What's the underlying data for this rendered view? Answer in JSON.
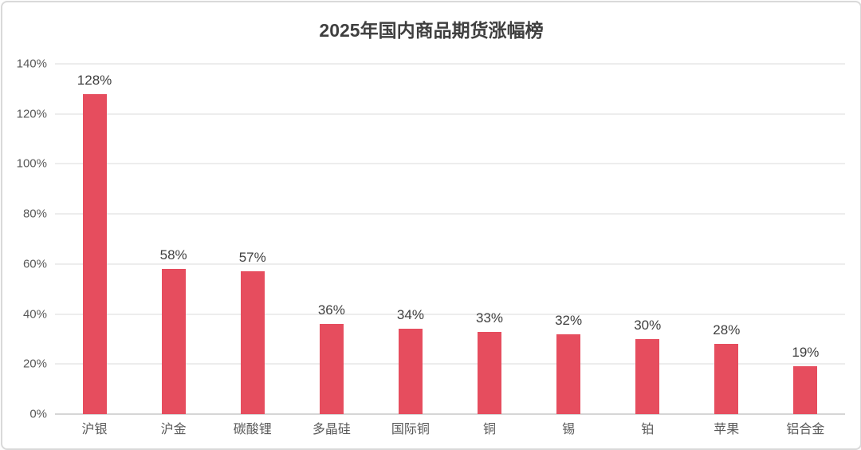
{
  "chart_data": {
    "type": "bar",
    "title": "2025年国内商品期货涨幅榜",
    "categories": [
      "沪银",
      "沪金",
      "碳酸锂",
      "多晶硅",
      "国际铜",
      "铜",
      "锡",
      "铂",
      "苹果",
      "铝合金"
    ],
    "values": [
      128,
      58,
      57,
      36,
      34,
      33,
      32,
      30,
      28,
      19
    ],
    "data_labels": [
      "128%",
      "58%",
      "57%",
      "36%",
      "34%",
      "33%",
      "32%",
      "30%",
      "28%",
      "19%"
    ],
    "xlabel": "",
    "ylabel": "",
    "ylim": [
      0,
      140
    ],
    "y_ticks": [
      "0%",
      "20%",
      "40%",
      "60%",
      "80%",
      "100%",
      "120%",
      "140%"
    ],
    "y_tick_step": 20,
    "grid": true,
    "legend": "none",
    "colors": {
      "bar": "#e64d5e",
      "title": "#3f3f3f",
      "data_label": "#3f3f3f",
      "axis_label": "#595959",
      "gridline": "#ededed",
      "axis_line": "#d6d6d6",
      "card_border": "#d9d9d9",
      "background": "#ffffff"
    }
  }
}
